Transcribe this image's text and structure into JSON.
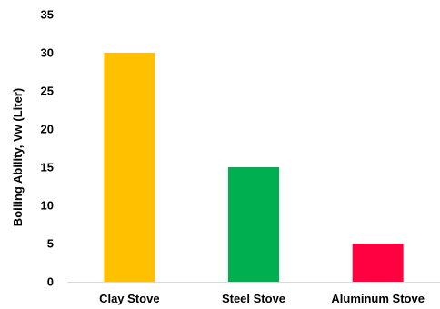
{
  "chart_data": {
    "type": "bar",
    "title": "",
    "xlabel": "",
    "ylabel": "Boiling  Ability, Vw (Liter)",
    "categories": [
      "Clay Stove",
      "Steel Stove",
      "Aluminum Stove"
    ],
    "values": [
      30,
      15,
      5
    ],
    "bar_colors": [
      "#FFC000",
      "#00B050",
      "#FF0040"
    ],
    "ylim": [
      0,
      35
    ],
    "yticks": [
      0,
      5,
      10,
      15,
      20,
      25,
      30,
      35
    ],
    "grid": false,
    "legend": "none"
  }
}
